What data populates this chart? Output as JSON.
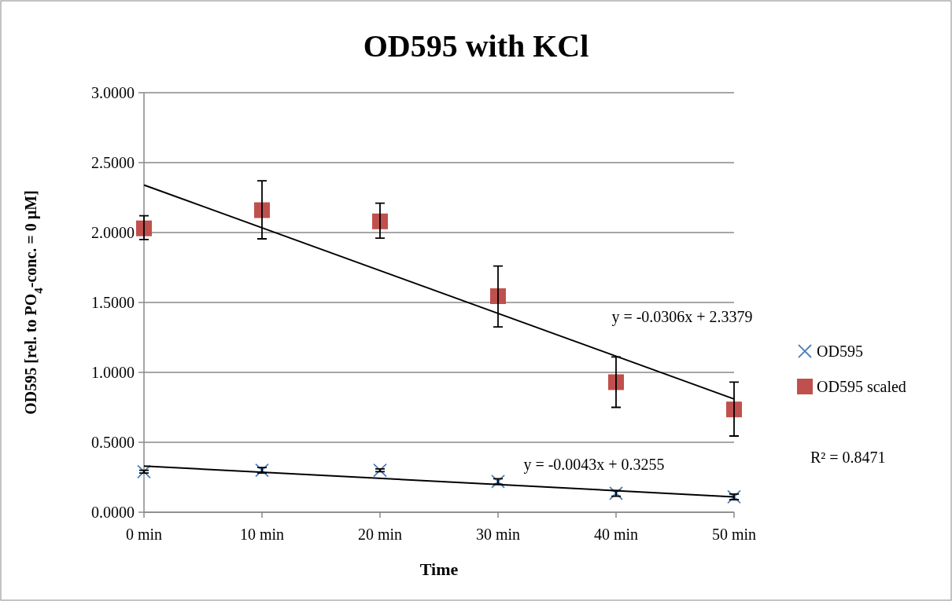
{
  "chart_data": {
    "type": "scatter",
    "title": "OD595 with KCl",
    "xlabel": "Time",
    "ylabel": "OD595 [rel. to PO$_{4}$-conc. = 0 µM]",
    "categories": [
      "0 min",
      "10 min",
      "20 min",
      "30 min",
      "40 min",
      "50 min"
    ],
    "series": [
      {
        "name": "OD595",
        "color": "#4a7ebb",
        "marker": "cross",
        "values": [
          0.29,
          0.3,
          0.3,
          0.22,
          0.135,
          0.11
        ],
        "errors": [
          0.01,
          0.02,
          0.01,
          0.02,
          0.02,
          0.02
        ]
      },
      {
        "name": "OD595 scaled",
        "color": "#c0504d",
        "marker": "square",
        "values": [
          2.03,
          2.16,
          2.08,
          1.545,
          0.93,
          0.735
        ],
        "errors": [
          [
            1.95,
            2.12
          ],
          [
            1.955,
            2.37
          ],
          [
            1.96,
            2.21
          ],
          [
            1.325,
            1.76
          ],
          [
            0.75,
            1.11
          ],
          [
            0.545,
            0.93
          ]
        ]
      },
      {
        "type": "line",
        "color": "#000000",
        "marker": "none",
        "x": [
          "0 min",
          "50 min"
        ],
        "values": [
          2.34,
          0.81
        ]
      },
      {
        "type": "line",
        "color": "#000000",
        "marker": "none",
        "x": [
          "0 min",
          "50 min"
        ],
        "values": [
          0.33,
          0.11
        ]
      }
    ],
    "ylim": [
      0,
      3
    ],
    "yticks": [
      {
        "value": 0,
        "label": "0.0000"
      },
      {
        "value": 0.5,
        "label": "0.5000"
      },
      {
        "value": 1,
        "label": "1.0000"
      },
      {
        "value": 1.5,
        "label": "1.5000"
      },
      {
        "value": 2,
        "label": "2.0000"
      },
      {
        "value": 2.5,
        "label": "2.5000"
      },
      {
        "value": 3,
        "label": "3.0000"
      }
    ],
    "grid": "y",
    "legend": "right",
    "annotations": [
      "y = -0.0306x + 2.3379",
      "y = -0.0043x + 0.3255",
      "R² = 0.8471"
    ]
  }
}
